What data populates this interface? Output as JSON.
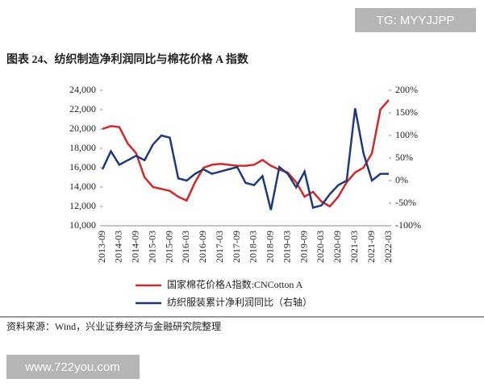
{
  "watermark_top": "TG: MYYJJPP",
  "watermark_bottom": "www.722you.com",
  "source": "资料来源：Wind，兴业证券经济与金融研究院整理",
  "chart_data": {
    "type": "line",
    "title": "图表 24、纺织制造净利润同比与棉花价格 A 指数",
    "x": [
      "2013-09",
      "2013-12",
      "2014-03",
      "2014-06",
      "2014-09",
      "2014-12",
      "2015-03",
      "2015-06",
      "2015-09",
      "2015-12",
      "2016-03",
      "2016-06",
      "2016-09",
      "2016-12",
      "2017-03",
      "2017-06",
      "2017-09",
      "2017-12",
      "2018-03",
      "2018-06",
      "2018-09",
      "2018-12",
      "2019-03",
      "2019-06",
      "2019-09",
      "2019-12",
      "2020-03",
      "2020-06",
      "2020-09",
      "2020-12",
      "2021-03",
      "2021-06",
      "2021-09",
      "2021-12",
      "2022-03"
    ],
    "xticks": [
      "2013-09",
      "2014-03",
      "2014-09",
      "2015-03",
      "2015-09",
      "2016-03",
      "2016-09",
      "2017-03",
      "2017-09",
      "2018-03",
      "2018-09",
      "2019-03",
      "2019-09",
      "2020-03",
      "2020-09",
      "2021-03",
      "2021-09",
      "2022-03"
    ],
    "ylim": [
      10000,
      24000
    ],
    "yticks": [
      {
        "value": 10000,
        "label": "10,000"
      },
      {
        "value": 12000,
        "label": "12,000"
      },
      {
        "value": 14000,
        "label": "14,000"
      },
      {
        "value": 16000,
        "label": "16,000"
      },
      {
        "value": 18000,
        "label": "18,000"
      },
      {
        "value": 20000,
        "label": "20,000"
      },
      {
        "value": 22000,
        "label": "22,000"
      },
      {
        "value": 24000,
        "label": "24,000"
      }
    ],
    "y2lim": [
      -100,
      200
    ],
    "y2ticks": [
      {
        "value": -100,
        "label": "-100%"
      },
      {
        "value": -50,
        "label": "-50%"
      },
      {
        "value": 0,
        "label": "0%"
      },
      {
        "value": 50,
        "label": "50%"
      },
      {
        "value": 100,
        "label": "100%"
      },
      {
        "value": 150,
        "label": "150%"
      },
      {
        "value": 200,
        "label": "200%"
      }
    ],
    "series": [
      {
        "name": "国家棉花价格A指数:CNCotton A",
        "color": "#d02a2a",
        "values": [
          20000,
          20300,
          20200,
          18500,
          17500,
          15000,
          14000,
          13800,
          13600,
          13000,
          12600,
          14500,
          16000,
          16300,
          16400,
          16300,
          16200,
          16200,
          16300,
          16800,
          16200,
          15800,
          15500,
          14500,
          13000,
          13500,
          12500,
          12000,
          13000,
          14500,
          15500,
          16000,
          17500,
          22000,
          23000
        ]
      },
      {
        "name": "纺织服装累计净利润同比（右轴）",
        "color": "#1f3a7a",
        "axis": "y2",
        "values": [
          25,
          65,
          35,
          45,
          55,
          45,
          80,
          100,
          95,
          5,
          0,
          15,
          25,
          15,
          20,
          25,
          30,
          -5,
          -10,
          10,
          -65,
          30,
          15,
          -15,
          20,
          -60,
          -55,
          -30,
          -10,
          0,
          160,
          60,
          0,
          15,
          15
        ]
      }
    ]
  }
}
